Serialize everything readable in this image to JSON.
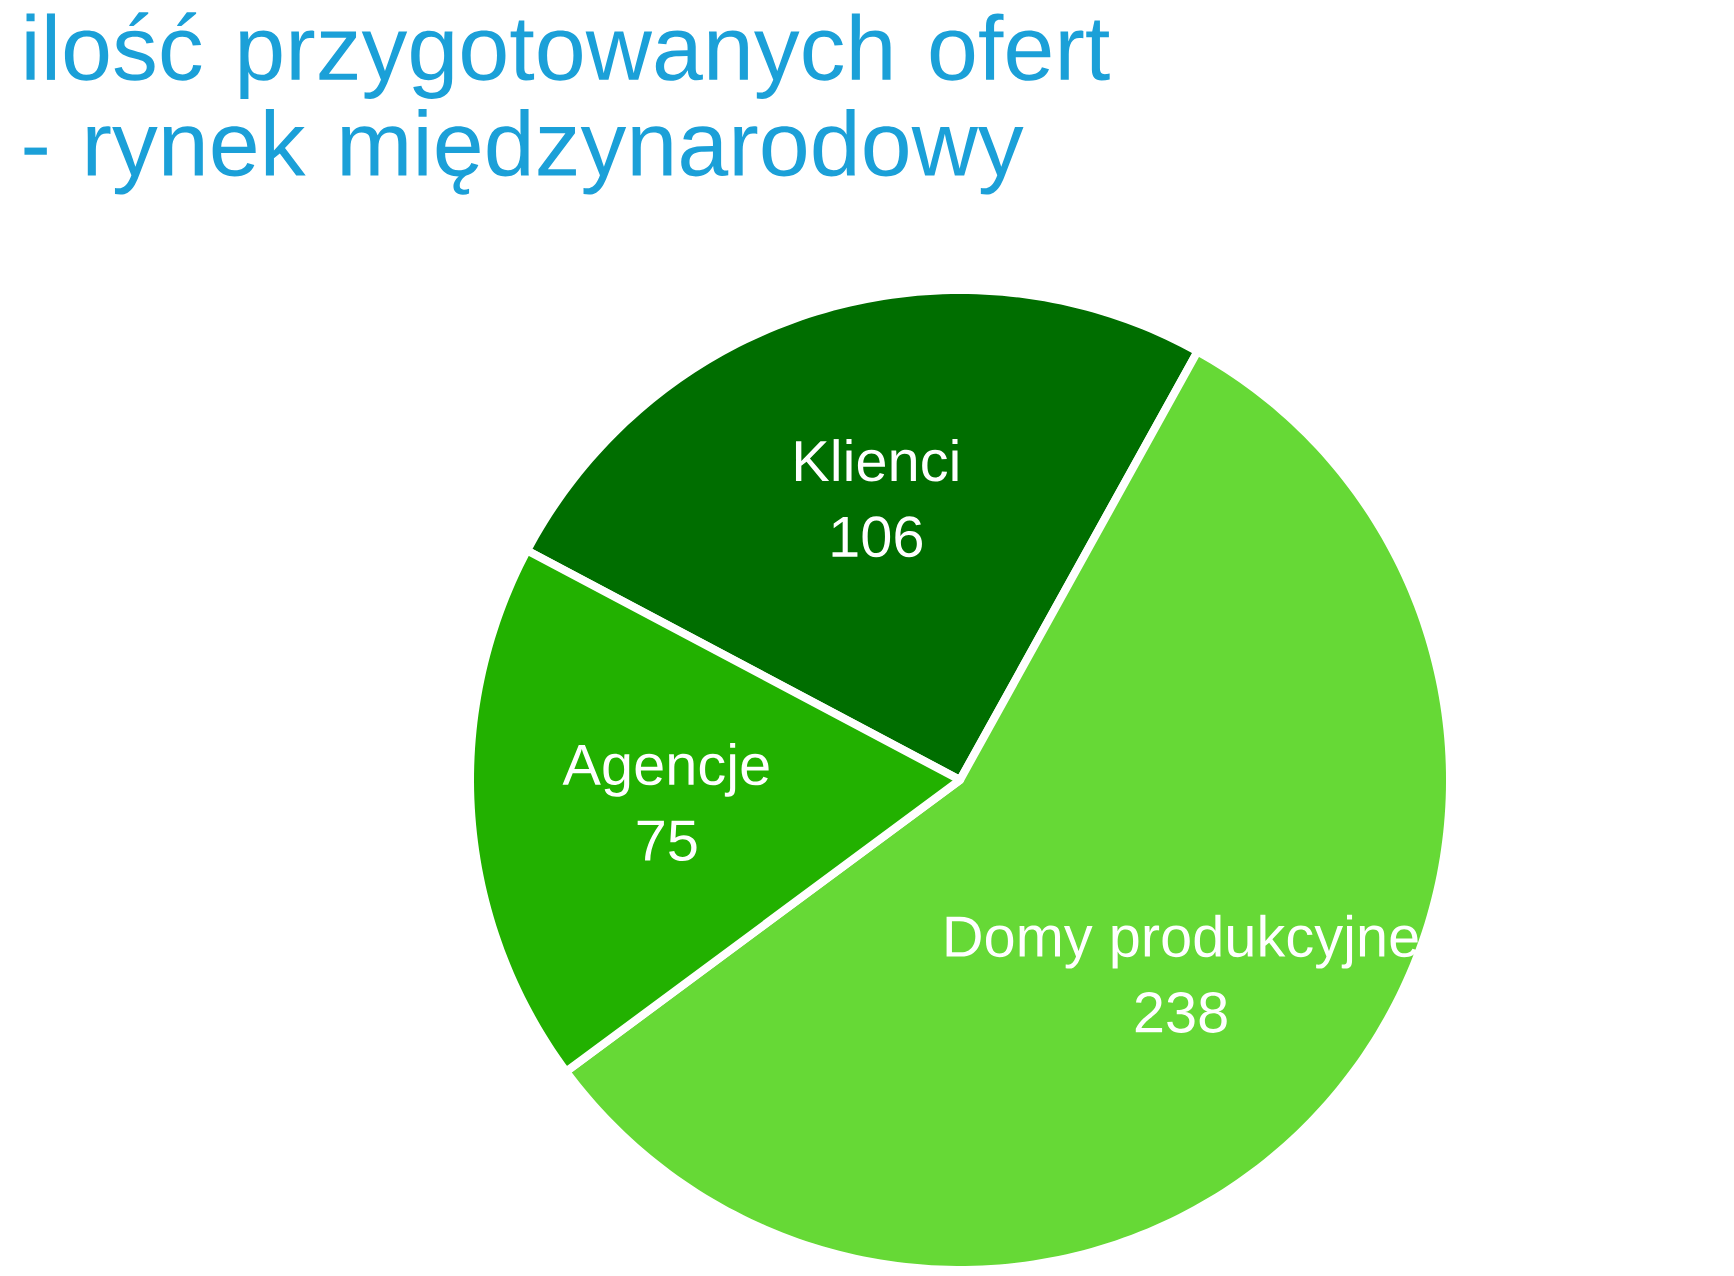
{
  "chart_data": {
    "type": "pie",
    "title": "ilość przygotowanych ofert - rynek międzynarodowy",
    "categories": [
      "Klienci",
      "Domy produkcyjne",
      "Agencje"
    ],
    "values": [
      106,
      238,
      75
    ],
    "value_labels": [
      "106",
      "238",
      "75"
    ],
    "colors": [
      "#006e00",
      "#66d936",
      "#22b100"
    ]
  }
}
